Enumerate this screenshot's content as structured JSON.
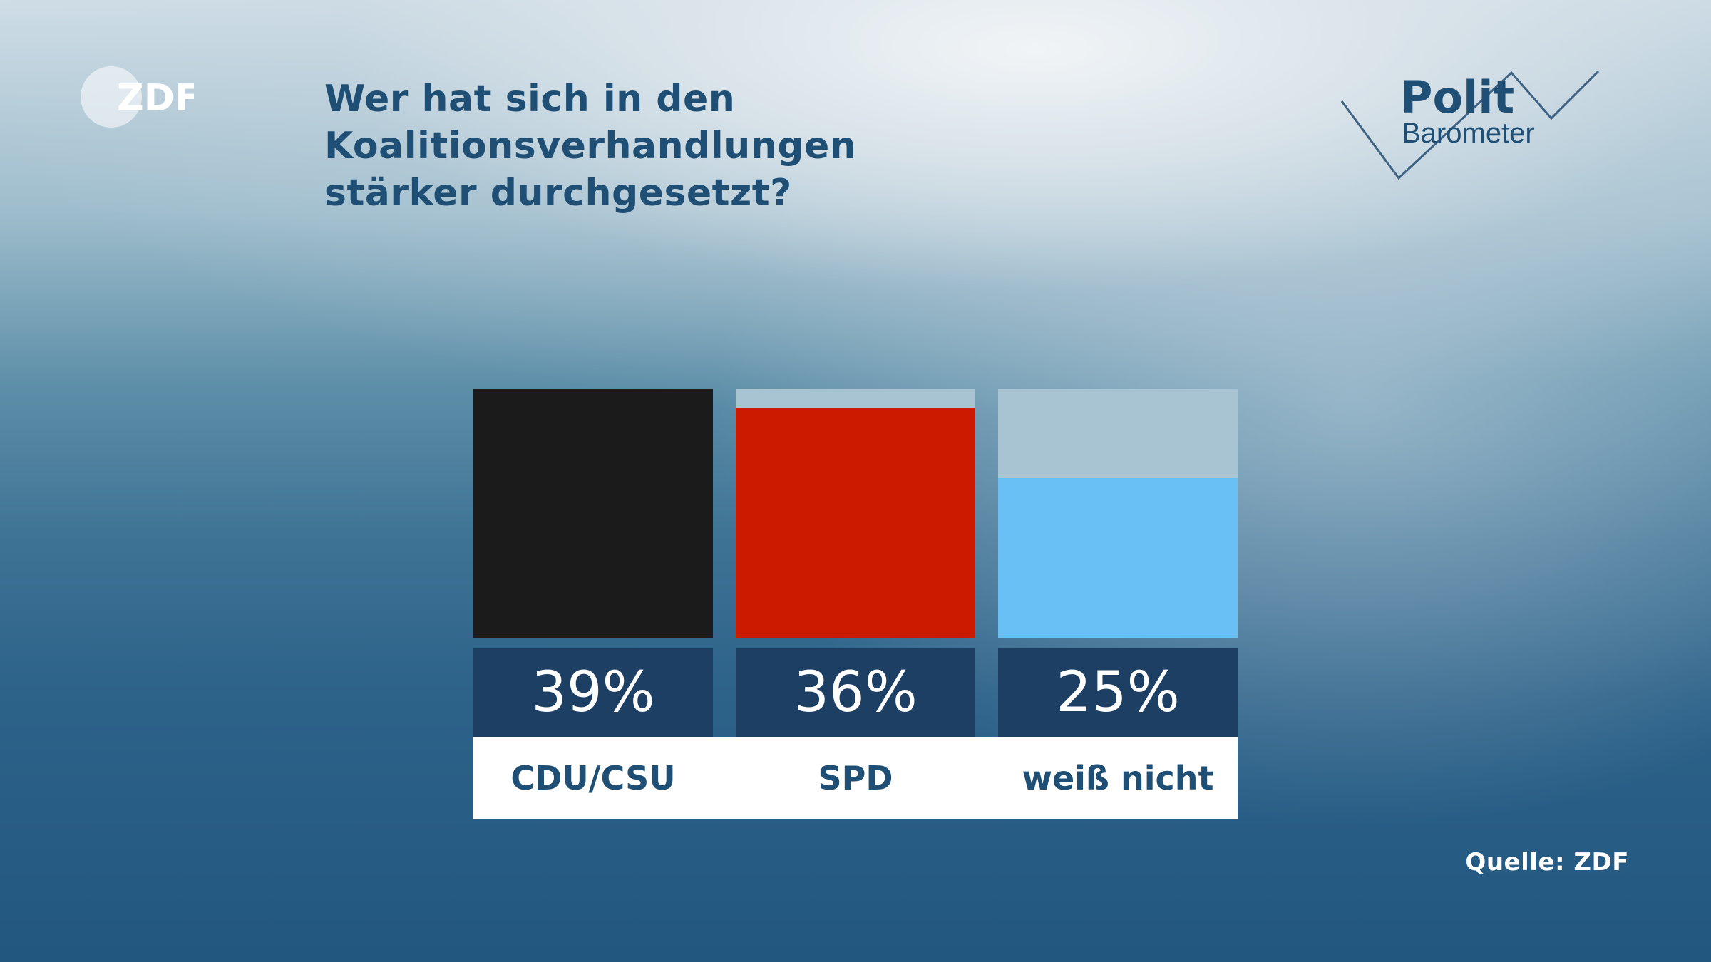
{
  "header": {
    "title_line1": "Wer hat sich in den Koalitionsverhandlungen",
    "title_line2": "stärker durchgesetzt?"
  },
  "logos": {
    "zdf": {
      "text": "ZDF",
      "icon": "zdf-logo"
    },
    "politbarometer": {
      "polit": "Polit",
      "barometer": "Barometer",
      "icon": "politbarometer-logo"
    }
  },
  "chart_data": {
    "type": "bar",
    "title": "Wer hat sich in den Koalitionsverhandlungen stärker durchgesetzt?",
    "categories": [
      "CDU/CSU",
      "SPD",
      "weiß nicht"
    ],
    "values": [
      39,
      36,
      25
    ],
    "value_labels": [
      "39%",
      "36%",
      "25%"
    ],
    "unit": "%",
    "ylim": [
      0,
      39
    ],
    "colors": [
      "#1b1b1b",
      "#cc1a00",
      "#68c0f5"
    ],
    "track_color": "#a8c4d2",
    "xlabel": "",
    "ylabel": "",
    "grid": false
  },
  "source": "Quelle: ZDF"
}
